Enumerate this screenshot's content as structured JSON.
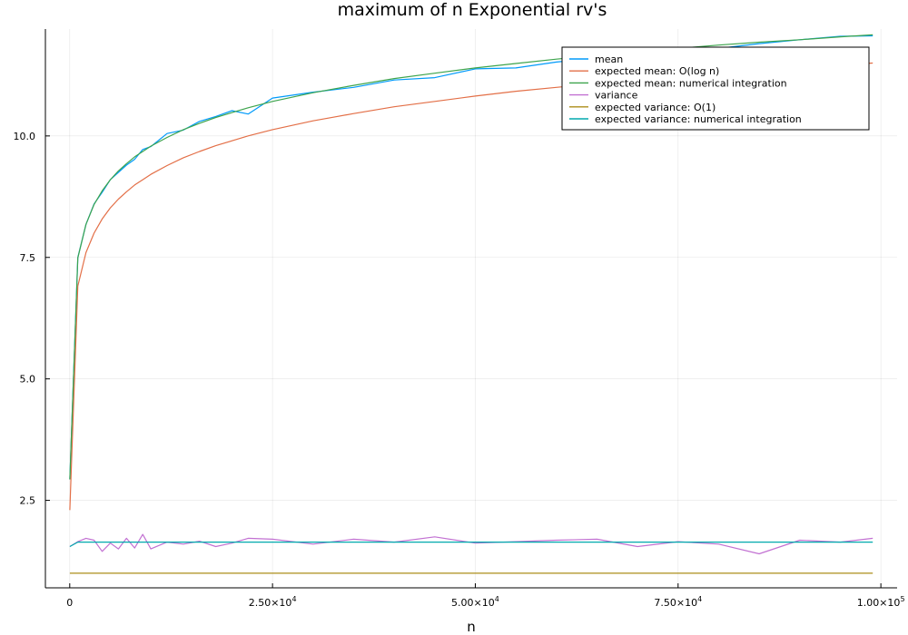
{
  "chart_data": {
    "type": "line",
    "title": "maximum of n Exponential rv's",
    "xlabel": "n",
    "ylabel": "",
    "xlim": [
      -3000,
      102000
    ],
    "ylim": [
      0.7,
      12.2
    ],
    "grid": true,
    "legend_position": "top-right",
    "x_ticks": [
      {
        "value": 0,
        "label": "0"
      },
      {
        "value": 25000,
        "mantissa": "2.50×10",
        "exp": "4"
      },
      {
        "value": 50000,
        "mantissa": "5.00×10",
        "exp": "4"
      },
      {
        "value": 75000,
        "mantissa": "7.50×10",
        "exp": "4"
      },
      {
        "value": 100000,
        "mantissa": "1.00×10",
        "exp": "5"
      }
    ],
    "y_ticks": [
      {
        "value": 2.5,
        "label": "2.5"
      },
      {
        "value": 5.0,
        "label": "5.0"
      },
      {
        "value": 7.5,
        "label": "7.5"
      },
      {
        "value": 10.0,
        "label": "10.0"
      }
    ],
    "x": [
      10,
      1000,
      2000,
      3000,
      4000,
      5000,
      6000,
      7000,
      8000,
      9000,
      10000,
      12000,
      14000,
      16000,
      18000,
      20000,
      22000,
      25000,
      30000,
      35000,
      40000,
      45000,
      50000,
      55000,
      60000,
      65000,
      70000,
      75000,
      80000,
      85000,
      90000,
      95000,
      99000
    ],
    "series": [
      {
        "name": "mean",
        "color": "#009afa",
        "values": [
          2.93,
          7.5,
          8.18,
          8.6,
          8.84,
          9.1,
          9.25,
          9.4,
          9.52,
          9.72,
          9.78,
          10.05,
          10.12,
          10.3,
          10.4,
          10.52,
          10.45,
          10.78,
          10.9,
          11.0,
          11.15,
          11.2,
          11.38,
          11.4,
          11.52,
          11.6,
          11.65,
          11.72,
          11.8,
          11.9,
          11.98,
          12.05,
          12.06
        ]
      },
      {
        "name": "expected mean: O(log n)",
        "color": "#e36f47",
        "values": [
          2.3,
          6.91,
          7.6,
          8.0,
          8.29,
          8.52,
          8.7,
          8.85,
          8.99,
          9.1,
          9.21,
          9.39,
          9.55,
          9.68,
          9.8,
          9.9,
          10.0,
          10.13,
          10.31,
          10.46,
          10.6,
          10.71,
          10.82,
          10.92,
          11.0,
          11.08,
          11.16,
          11.23,
          11.29,
          11.35,
          11.41,
          11.46,
          11.5
        ]
      },
      {
        "name": "expected mean: numerical integration",
        "color": "#3da44d",
        "values": [
          2.93,
          7.49,
          8.18,
          8.59,
          8.87,
          9.1,
          9.28,
          9.43,
          9.57,
          9.68,
          9.79,
          9.97,
          10.13,
          10.26,
          10.38,
          10.48,
          10.58,
          10.71,
          10.89,
          11.04,
          11.18,
          11.29,
          11.4,
          11.49,
          11.58,
          11.66,
          11.73,
          11.8,
          11.87,
          11.93,
          11.98,
          12.04,
          12.08
        ]
      },
      {
        "name": "variance",
        "color": "#c271d2",
        "values": [
          1.55,
          1.65,
          1.72,
          1.68,
          1.45,
          1.62,
          1.5,
          1.72,
          1.52,
          1.8,
          1.5,
          1.64,
          1.6,
          1.66,
          1.55,
          1.62,
          1.72,
          1.7,
          1.6,
          1.7,
          1.64,
          1.75,
          1.62,
          1.65,
          1.68,
          1.7,
          1.55,
          1.65,
          1.6,
          1.4,
          1.68,
          1.64,
          1.72
        ]
      },
      {
        "name": "expected variance: O(1)",
        "color": "#ac8d18",
        "values": [
          1.0,
          1.0,
          1.0,
          1.0,
          1.0,
          1.0,
          1.0,
          1.0,
          1.0,
          1.0,
          1.0,
          1.0,
          1.0,
          1.0,
          1.0,
          1.0,
          1.0,
          1.0,
          1.0,
          1.0,
          1.0,
          1.0,
          1.0,
          1.0,
          1.0,
          1.0,
          1.0,
          1.0,
          1.0,
          1.0,
          1.0,
          1.0,
          1.0
        ]
      },
      {
        "name": "expected variance: numerical integration",
        "color": "#00a9ad",
        "values": [
          1.55,
          1.64,
          1.64,
          1.64,
          1.64,
          1.64,
          1.64,
          1.64,
          1.64,
          1.64,
          1.64,
          1.64,
          1.64,
          1.64,
          1.64,
          1.64,
          1.64,
          1.64,
          1.64,
          1.64,
          1.64,
          1.64,
          1.64,
          1.64,
          1.64,
          1.64,
          1.64,
          1.64,
          1.64,
          1.64,
          1.64,
          1.64,
          1.64
        ]
      }
    ]
  }
}
